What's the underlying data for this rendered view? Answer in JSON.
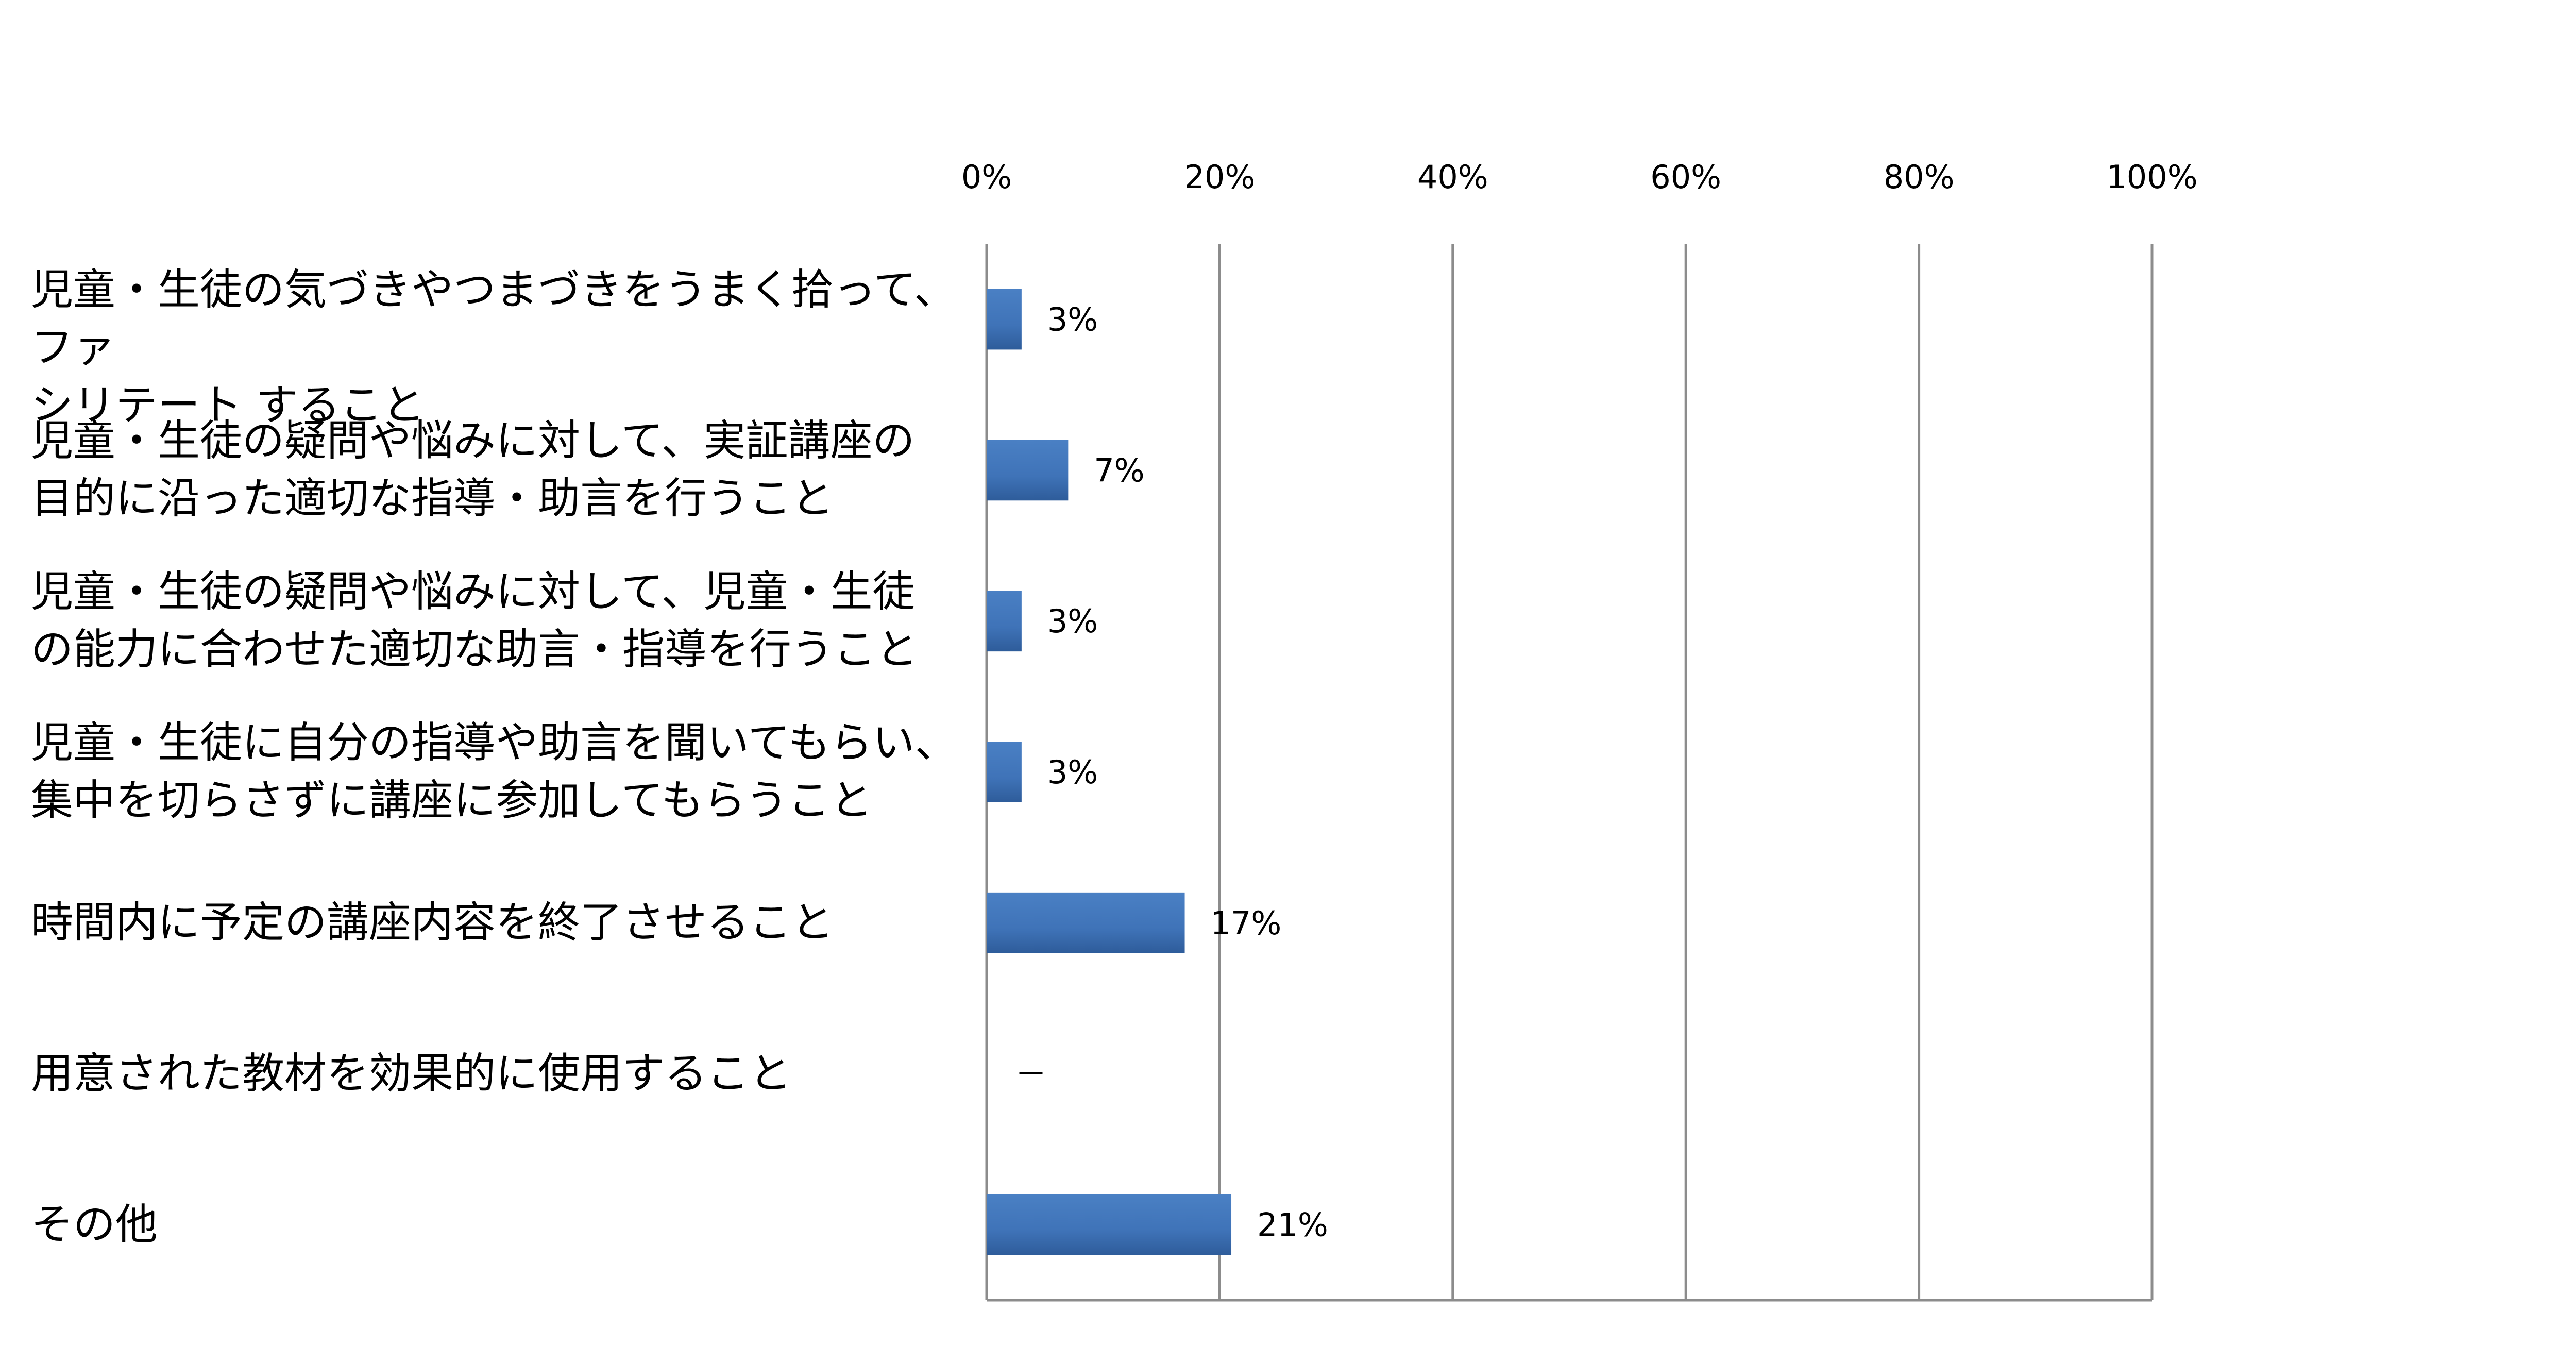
{
  "chart_data": {
    "type": "bar",
    "orientation": "horizontal",
    "title": "",
    "xlabel": "",
    "ylabel": "",
    "xlim": [
      0,
      100
    ],
    "x_tick_values": [
      0,
      20,
      40,
      60,
      80,
      100
    ],
    "x_tick_labels": [
      "0%",
      "20%",
      "40%",
      "60%",
      "80%",
      "100%"
    ],
    "x_axis_position": "top",
    "grid": true,
    "legend": "none",
    "bar_color": "#3F73B8",
    "categories": [
      {
        "line1": "児童・生徒の気づきやつまづきをうまく拾って、ファ",
        "line2": "シリテート すること"
      },
      {
        "line1": "児童・生徒の疑問や悩みに対して、実証講座の",
        "line2": "目的に沿った適切な指導・助言を行うこと"
      },
      {
        "line1": "児童・生徒の疑問や悩みに対して、児童・生徒",
        "line2": "の能力に合わせた適切な助言・指導を行うこと"
      },
      {
        "line1": "児童・生徒に自分の指導や助言を聞いてもらい、",
        "line2": "集中を切らさずに講座に参加してもらうこと"
      },
      {
        "line1": "時間内に予定の講座内容を終了させること",
        "line2": ""
      },
      {
        "line1": "用意された教材を効果的に使用すること",
        "line2": ""
      },
      {
        "line1": "その他",
        "line2": ""
      }
    ],
    "values": [
      3,
      7,
      3,
      3,
      17,
      null,
      21
    ],
    "data_labels": [
      "3%",
      "7%",
      "3%",
      "3%",
      "17%",
      "－",
      "21%"
    ]
  }
}
